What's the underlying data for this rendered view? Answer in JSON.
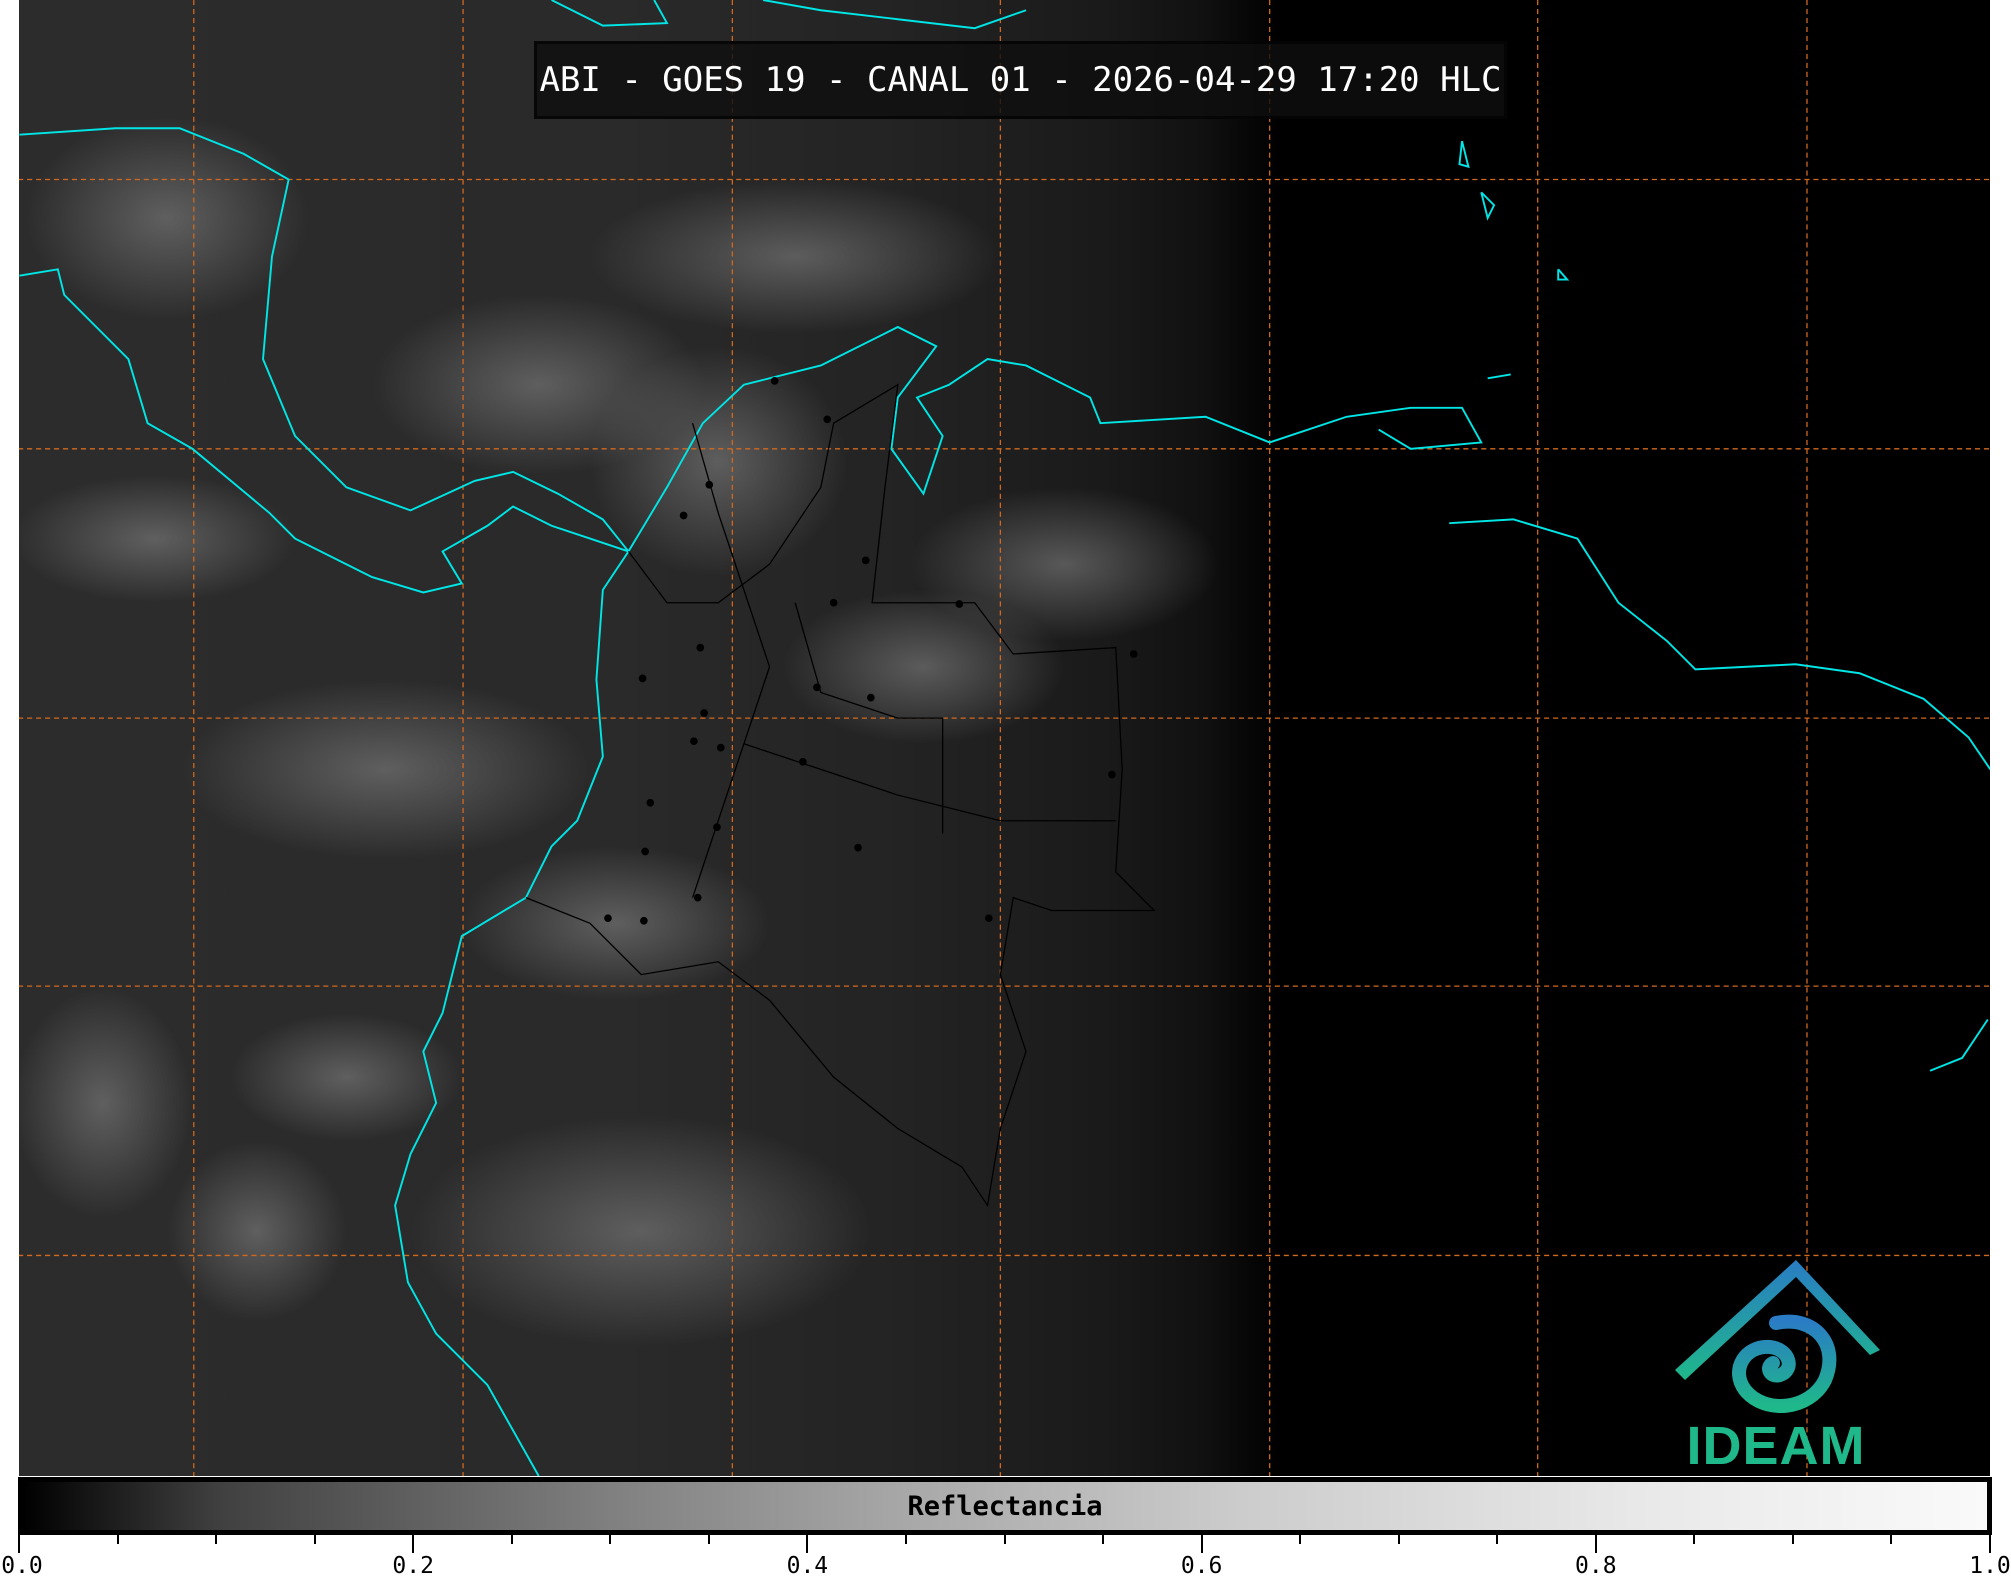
{
  "title": "ABI - GOES 19 - CANAL 01 - 2026-04-29 17:20 HLC",
  "colorbar": {
    "label": "Reflectancia",
    "min": 0.0,
    "max": 1.0,
    "tick_labels": [
      "0.0",
      "0.2",
      "0.4",
      "0.6",
      "0.8",
      "1.0"
    ],
    "colormap": "grayscale black-to-white"
  },
  "logo": {
    "text": "IDEAM",
    "color": "#1fb88a",
    "accent": "#2a7cc4"
  },
  "colors": {
    "coastline": "#00e5e5",
    "gridlines": "#d2691e",
    "borders": "#000000"
  }
}
